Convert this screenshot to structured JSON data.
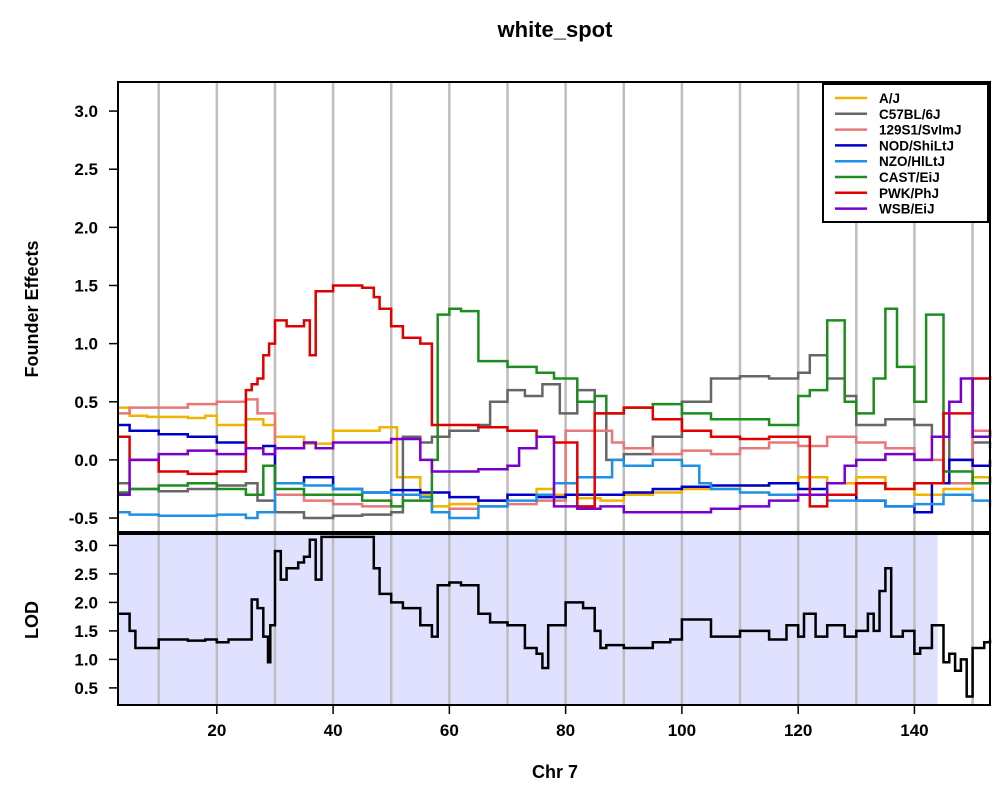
{
  "chart_data": [
    {
      "type": "line",
      "title": "white_spot",
      "ylabel": "Founder Effects",
      "xlim": [
        3,
        153
      ],
      "ylim": [
        -0.62,
        3.25
      ],
      "yticks": [
        -0.5,
        0.0,
        0.5,
        1.0,
        1.5,
        2.0,
        2.5,
        3.0
      ],
      "ytick_labels": [
        "-0.5",
        "0.0",
        "0.5",
        "1.0",
        "1.5",
        "2.0",
        "2.5",
        "3.0"
      ],
      "vertical_gridlines_x": [
        10,
        20,
        30,
        40,
        50,
        60,
        70,
        80,
        90,
        100,
        110,
        120,
        130,
        140,
        150
      ],
      "legend_position": "top-right",
      "series": [
        {
          "name": "A/J",
          "color": "#F0B400",
          "x": [
            3,
            4,
            5,
            8,
            15,
            18,
            20,
            24,
            25,
            28,
            30,
            35,
            40,
            45,
            48,
            51,
            55,
            57,
            60,
            65,
            70,
            75,
            78,
            82,
            86,
            90,
            95,
            100,
            105,
            110,
            115,
            120,
            125,
            130,
            135,
            140,
            145,
            150,
            153
          ],
          "y": [
            0.45,
            0.45,
            0.38,
            0.37,
            0.36,
            0.38,
            0.3,
            0.3,
            0.35,
            0.3,
            0.2,
            0.14,
            0.25,
            0.25,
            0.28,
            -0.15,
            -0.3,
            -0.4,
            -0.38,
            -0.35,
            -0.3,
            -0.25,
            -0.3,
            -0.33,
            -0.35,
            -0.3,
            -0.28,
            -0.25,
            -0.25,
            -0.22,
            -0.2,
            -0.15,
            -0.2,
            -0.15,
            -0.25,
            -0.3,
            -0.25,
            -0.15,
            -0.2
          ]
        },
        {
          "name": "C57BL/6J",
          "color": "#666666",
          "x": [
            3,
            5,
            10,
            15,
            20,
            25,
            27,
            30,
            35,
            40,
            45,
            50,
            52,
            55,
            57,
            60,
            65,
            67,
            70,
            73,
            76,
            79,
            82,
            85,
            87,
            90,
            95,
            100,
            105,
            110,
            115,
            120,
            122,
            125,
            128,
            130,
            135,
            140,
            143,
            146,
            150,
            153
          ],
          "y": [
            -0.2,
            -0.25,
            -0.27,
            -0.25,
            -0.22,
            -0.2,
            -0.35,
            -0.45,
            -0.5,
            -0.48,
            -0.47,
            -0.45,
            0.2,
            0.15,
            0.2,
            0.25,
            0.3,
            0.5,
            0.6,
            0.55,
            0.65,
            0.4,
            0.6,
            0.4,
            0.0,
            0.05,
            0.2,
            0.5,
            0.7,
            0.72,
            0.7,
            0.75,
            0.9,
            0.7,
            0.55,
            0.3,
            0.35,
            0.3,
            0.2,
            0.0,
            0.15,
            0.1
          ]
        },
        {
          "name": "129S1/SvImJ",
          "color": "#E87878",
          "x": [
            3,
            5,
            10,
            15,
            20,
            25,
            27,
            30,
            35,
            40,
            45,
            50,
            55,
            57,
            60,
            65,
            70,
            75,
            80,
            85,
            88,
            90,
            95,
            100,
            105,
            110,
            115,
            120,
            125,
            130,
            135,
            140,
            145,
            150,
            153
          ],
          "y": [
            0.4,
            0.45,
            0.45,
            0.48,
            0.5,
            0.52,
            0.4,
            -0.3,
            -0.35,
            -0.38,
            -0.4,
            -0.3,
            -0.35,
            -0.45,
            -0.42,
            -0.4,
            -0.38,
            -0.35,
            0.25,
            0.25,
            0.15,
            0.1,
            0.05,
            0.08,
            0.05,
            0.1,
            0.15,
            0.12,
            0.2,
            0.15,
            0.1,
            0.0,
            -0.2,
            0.25,
            0.2
          ]
        },
        {
          "name": "NOD/ShiLtJ",
          "color": "#0000CC",
          "x": [
            3,
            5,
            10,
            15,
            20,
            25,
            28,
            30,
            35,
            40,
            45,
            50,
            55,
            60,
            65,
            70,
            75,
            80,
            85,
            90,
            95,
            100,
            105,
            110,
            115,
            120,
            125,
            130,
            135,
            140,
            143,
            146,
            150,
            153
          ],
          "y": [
            0.3,
            0.25,
            0.22,
            0.2,
            0.15,
            0.1,
            0.12,
            -0.2,
            -0.15,
            -0.25,
            -0.28,
            -0.26,
            -0.28,
            -0.32,
            -0.35,
            -0.3,
            -0.32,
            -0.3,
            -0.3,
            -0.28,
            -0.25,
            -0.23,
            -0.22,
            -0.22,
            -0.2,
            -0.25,
            -0.3,
            -0.35,
            -0.4,
            -0.45,
            -0.2,
            0.0,
            -0.05,
            0.0
          ]
        },
        {
          "name": "NZO/HILtJ",
          "color": "#1E90E6",
          "x": [
            3,
            5,
            10,
            15,
            20,
            25,
            27,
            30,
            35,
            40,
            45,
            50,
            55,
            57,
            60,
            65,
            70,
            75,
            78,
            82,
            86,
            88,
            90,
            95,
            100,
            103,
            105,
            110,
            115,
            120,
            125,
            130,
            135,
            140,
            145,
            150,
            153
          ],
          "y": [
            -0.45,
            -0.47,
            -0.48,
            -0.48,
            -0.47,
            -0.5,
            -0.45,
            -0.2,
            -0.22,
            -0.25,
            -0.28,
            -0.3,
            -0.32,
            -0.45,
            -0.5,
            -0.4,
            -0.35,
            -0.3,
            -0.2,
            -0.15,
            -0.15,
            0.0,
            -0.05,
            0.0,
            -0.05,
            -0.2,
            -0.25,
            -0.28,
            -0.3,
            -0.3,
            -0.35,
            -0.35,
            -0.4,
            -0.38,
            -0.3,
            -0.35,
            -0.4
          ]
        },
        {
          "name": "CAST/EiJ",
          "color": "#1E8C1E",
          "x": [
            3,
            5,
            10,
            15,
            20,
            25,
            28,
            30,
            35,
            40,
            45,
            50,
            52,
            55,
            57,
            58,
            60,
            62,
            65,
            70,
            75,
            78,
            82,
            85,
            87,
            90,
            95,
            100,
            105,
            110,
            115,
            120,
            122,
            125,
            128,
            130,
            133,
            135,
            137,
            140,
            142,
            145,
            150,
            153
          ],
          "y": [
            -0.28,
            -0.25,
            -0.22,
            -0.2,
            -0.25,
            -0.3,
            -0.05,
            -0.25,
            -0.3,
            -0.3,
            -0.35,
            -0.4,
            -0.35,
            -0.35,
            0.0,
            1.25,
            1.3,
            1.28,
            0.85,
            0.8,
            0.75,
            0.7,
            0.5,
            0.55,
            0.4,
            0.45,
            0.48,
            0.4,
            0.35,
            0.35,
            0.3,
            0.55,
            0.6,
            1.2,
            0.5,
            0.4,
            0.7,
            1.3,
            0.8,
            0.5,
            1.25,
            -0.1,
            -0.2,
            -0.15
          ]
        },
        {
          "name": "PWK/PhJ",
          "color": "#E00000",
          "x": [
            3,
            5,
            10,
            15,
            20,
            25,
            26,
            27,
            28,
            29,
            30,
            32,
            35,
            36,
            37,
            40,
            45,
            47,
            48,
            50,
            52,
            55,
            57,
            60,
            65,
            70,
            75,
            78,
            82,
            85,
            88,
            90,
            95,
            100,
            105,
            110,
            115,
            120,
            122,
            125,
            130,
            135,
            140,
            145,
            150,
            153
          ],
          "y": [
            0.2,
            0.0,
            -0.1,
            -0.12,
            -0.1,
            0.6,
            0.65,
            0.7,
            0.9,
            1.0,
            1.2,
            1.15,
            1.2,
            0.9,
            1.45,
            1.5,
            1.48,
            1.4,
            1.3,
            1.15,
            1.05,
            1.0,
            0.3,
            0.3,
            0.28,
            0.25,
            0.2,
            0.15,
            -0.4,
            0.4,
            0.4,
            0.45,
            0.35,
            0.25,
            0.2,
            0.18,
            0.2,
            0.2,
            -0.4,
            -0.3,
            -0.2,
            -0.25,
            -0.2,
            0.4,
            0.7,
            0.72
          ]
        },
        {
          "name": "WSB/EiJ",
          "color": "#7A00CC",
          "x": [
            3,
            5,
            10,
            15,
            20,
            25,
            28,
            30,
            35,
            37,
            40,
            45,
            50,
            55,
            57,
            60,
            65,
            70,
            72,
            75,
            78,
            82,
            86,
            90,
            95,
            100,
            105,
            110,
            115,
            120,
            125,
            128,
            130,
            135,
            140,
            143,
            146,
            148,
            150,
            153
          ],
          "y": [
            -0.3,
            0.0,
            0.05,
            0.08,
            0.05,
            0.1,
            0.05,
            0.1,
            0.15,
            0.1,
            0.15,
            0.15,
            0.18,
            0.0,
            -0.1,
            -0.1,
            -0.08,
            -0.05,
            0.1,
            0.2,
            -0.4,
            -0.42,
            -0.4,
            -0.45,
            -0.45,
            -0.45,
            -0.42,
            -0.4,
            -0.35,
            -0.3,
            -0.2,
            -0.05,
            0.0,
            0.05,
            0.0,
            0.2,
            0.5,
            0.7,
            0.2,
            0.25
          ]
        }
      ],
      "legend": [
        "A/J",
        "C57BL/6J",
        "129S1/SvImJ",
        "NOD/ShiLtJ",
        "NZO/HlLtJ",
        "CAST/EiJ",
        "PWK/PhJ",
        "WSB/EiJ"
      ]
    },
    {
      "type": "line",
      "title": "",
      "ylabel": "LOD",
      "xlabel": "Chr 7",
      "xlim": [
        3,
        153
      ],
      "ylim": [
        0.2,
        3.2
      ],
      "yticks": [
        0.5,
        1.0,
        1.5,
        2.0,
        2.5,
        3.0
      ],
      "ytick_labels": [
        "0.5",
        "1.0",
        "1.5",
        "2.0",
        "2.5",
        "3.0"
      ],
      "xticks": [
        20,
        40,
        60,
        80,
        100,
        120,
        140
      ],
      "xtick_labels": [
        "20",
        "40",
        "60",
        "80",
        "100",
        "120",
        "140"
      ],
      "vertical_gridlines_x": [
        10,
        20,
        30,
        40,
        50,
        60,
        70,
        80,
        90,
        100,
        110,
        120,
        130,
        140,
        150
      ],
      "shaded_region_x": [
        3,
        144
      ],
      "shaded_color": "#E0E0FF",
      "series": [
        {
          "name": "",
          "color": "#000000",
          "x": [
            3,
            4,
            5,
            6,
            10,
            15,
            18,
            20,
            22,
            25,
            26,
            27,
            28,
            28.8,
            29.2,
            30,
            31,
            32,
            34,
            35,
            36,
            37,
            38,
            40,
            45,
            47,
            48,
            50,
            52,
            55,
            57,
            58,
            60,
            62,
            65,
            67,
            70,
            73,
            75,
            76,
            77,
            78,
            80,
            83,
            85,
            86,
            87,
            90,
            95,
            98,
            100,
            105,
            110,
            115,
            118,
            120,
            121,
            123,
            125,
            128,
            130,
            132,
            133,
            134,
            135,
            136,
            138,
            140,
            141,
            143,
            145,
            146,
            147,
            148,
            149,
            150,
            152,
            153
          ],
          "y": [
            1.8,
            1.8,
            1.5,
            1.2,
            1.35,
            1.33,
            1.35,
            1.3,
            1.35,
            1.35,
            2.05,
            1.9,
            1.4,
            0.95,
            1.6,
            2.9,
            2.4,
            2.6,
            2.7,
            2.8,
            3.1,
            2.4,
            3.15,
            3.15,
            3.15,
            2.6,
            2.15,
            2.0,
            1.9,
            1.6,
            1.4,
            2.3,
            2.35,
            2.3,
            1.8,
            1.65,
            1.6,
            1.2,
            1.1,
            0.85,
            1.6,
            1.6,
            2.0,
            1.9,
            1.5,
            1.2,
            1.25,
            1.2,
            1.3,
            1.35,
            1.7,
            1.4,
            1.5,
            1.35,
            1.6,
            1.4,
            1.8,
            1.4,
            1.6,
            1.4,
            1.5,
            1.8,
            1.5,
            2.2,
            2.6,
            1.4,
            1.5,
            1.1,
            1.2,
            1.6,
            0.95,
            1.1,
            0.8,
            1.0,
            0.35,
            1.2,
            1.3,
            1.35
          ]
        }
      ]
    }
  ]
}
